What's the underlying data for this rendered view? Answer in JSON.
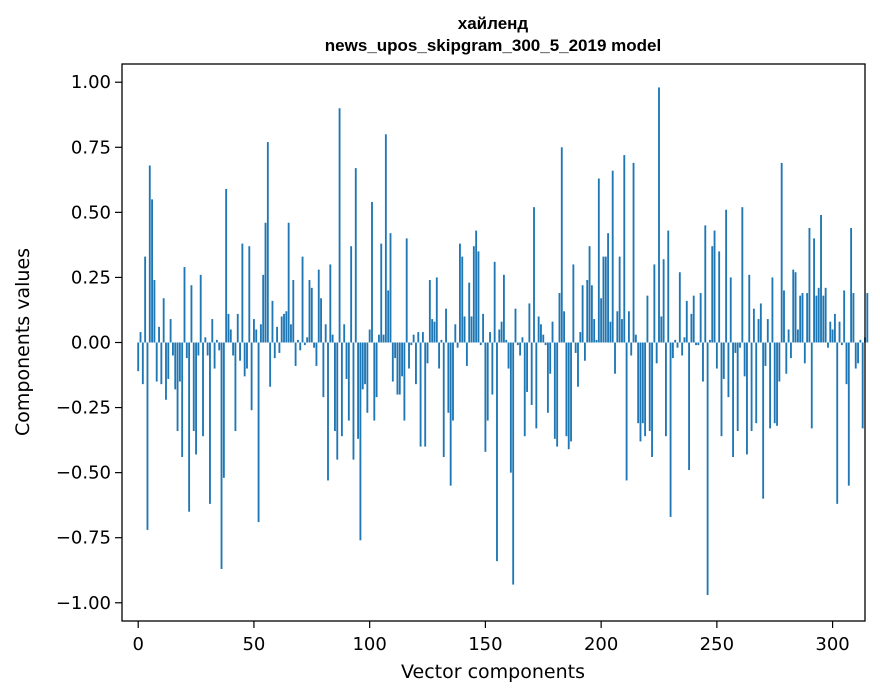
{
  "chart_data": {
    "type": "bar",
    "title": [
      "хайленд",
      "news_upos_skipgram_300_5_2019 model"
    ],
    "xlabel": "Vector components",
    "ylabel": "Components values",
    "xlim": [
      -7,
      314
    ],
    "ylim": [
      -1.07,
      1.07
    ],
    "xticks": [
      0,
      50,
      100,
      150,
      200,
      250,
      300
    ],
    "yticks": [
      1.0,
      0.75,
      0.5,
      0.25,
      0.0,
      -0.25,
      -0.5,
      -0.75,
      -1.0
    ],
    "ytick_labels": [
      "1.00",
      "0.75",
      "0.50",
      "0.25",
      "0.00",
      "−0.25",
      "−0.50",
      "−0.75",
      "−1.00"
    ],
    "bar_color": "#1f77b4",
    "values": [
      -0.11,
      0.04,
      -0.16,
      0.33,
      -0.72,
      0.68,
      0.55,
      0.24,
      -0.15,
      0.06,
      -0.16,
      0.17,
      -0.22,
      -0.14,
      0.09,
      -0.05,
      -0.18,
      -0.34,
      -0.15,
      -0.44,
      0.29,
      -0.06,
      -0.65,
      0.22,
      -0.34,
      -0.43,
      -0.05,
      0.26,
      -0.36,
      0.02,
      -0.05,
      -0.62,
      0.09,
      -0.1,
      0.01,
      -0.03,
      -0.87,
      -0.52,
      0.59,
      0.11,
      0.05,
      -0.05,
      -0.34,
      0.11,
      -0.07,
      0.38,
      -0.13,
      -0.1,
      0.37,
      -0.26,
      0.09,
      0.05,
      -0.69,
      0.07,
      0.26,
      0.46,
      0.77,
      -0.17,
      0.16,
      -0.06,
      0.06,
      -0.04,
      0.1,
      0.11,
      0.12,
      0.46,
      0.07,
      0.24,
      -0.09,
      0.01,
      -0.03,
      0.33,
      -0.01,
      0.02,
      0.24,
      0.21,
      -0.02,
      -0.09,
      0.28,
      0.17,
      -0.21,
      0.07,
      -0.53,
      0.3,
      0.03,
      -0.34,
      -0.45,
      0.9,
      -0.36,
      0.07,
      -0.14,
      -0.3,
      0.37,
      -0.45,
      0.67,
      -0.37,
      -0.76,
      -0.18,
      -0.16,
      -0.27,
      0.05,
      0.54,
      -0.3,
      -0.21,
      0.03,
      0.38,
      0.03,
      0.8,
      0.2,
      0.42,
      -0.15,
      -0.06,
      -0.2,
      -0.2,
      -0.13,
      -0.3,
      0.4,
      -0.1,
      -0.01,
      0.03,
      -0.16,
      0.04,
      -0.4,
      0.04,
      -0.4,
      -0.08,
      0.24,
      0.09,
      0.08,
      0.25,
      -0.1,
      0.01,
      -0.44,
      0.13,
      -0.27,
      -0.55,
      -0.3,
      0.07,
      -0.02,
      0.38,
      0.33,
      0.1,
      -0.09,
      0.23,
      0.1,
      0.37,
      0.43,
      0.35,
      -0.01,
      0.11,
      -0.42,
      -0.3,
      0.04,
      -0.2,
      0.31,
      -0.84,
      0.05,
      0.08,
      0.26,
      0.01,
      -0.1,
      -0.5,
      -0.93,
      0.13,
      -0.01,
      -0.05,
      0.02,
      -0.36,
      -0.19,
      0.15,
      -0.24,
      0.52,
      -0.33,
      0.1,
      0.07,
      0.03,
      -0.01,
      -0.27,
      -0.12,
      0.08,
      -0.37,
      -0.4,
      0.19,
      0.75,
      0.12,
      -0.36,
      -0.41,
      -0.38,
      0.3,
      -0.04,
      -0.17,
      0.04,
      0.22,
      -0.07,
      0.24,
      0.37,
      0.22,
      0.09,
      0.01,
      0.63,
      0.17,
      0.33,
      0.33,
      0.42,
      0.08,
      0.66,
      -0.12,
      0.12,
      0.33,
      0.09,
      0.72,
      -0.53,
      0.12,
      -0.05,
      0.69,
      0.03,
      -0.31,
      -0.38,
      -0.31,
      -0.36,
      0.18,
      -0.34,
      -0.44,
      0.3,
      -0.08,
      0.98,
      0.1,
      0.32,
      -0.36,
      0.43,
      -0.67,
      -0.06,
      0.01,
      -0.02,
      0.27,
      -0.05,
      0.02,
      0.16,
      -0.49,
      0.11,
      0.18,
      -0.01,
      -0.01,
      0.19,
      -0.15,
      0.45,
      -0.97,
      0.01,
      0.37,
      0.43,
      -0.1,
      0.35,
      -0.36,
      -0.14,
      0.51,
      -0.21,
      0.25,
      -0.44,
      -0.04,
      -0.34,
      -0.02,
      0.52,
      -0.13,
      -0.43,
      0.26,
      -0.34,
      0.13,
      -0.31,
      0.09,
      0.15,
      -0.6,
      -0.09,
      0.09,
      -0.33,
      0.25,
      -0.31,
      -0.32,
      -0.15,
      0.69,
      0.2,
      -0.12,
      0.05,
      -0.06,
      0.28,
      0.27,
      0.05,
      0.18,
      0.19,
      -0.08,
      0.19,
      0.44,
      -0.33,
      0.4,
      0.18,
      0.21,
      0.49,
      0.18,
      0.21,
      -0.02,
      0.08,
      0.05,
      0.11,
      -0.62,
      0.08,
      -0.01,
      0.2,
      -0.16,
      -0.55,
      0.44,
      0.19,
      -0.1,
      -0.08,
      0.01,
      -0.33,
      0.02,
      0.19
    ]
  }
}
